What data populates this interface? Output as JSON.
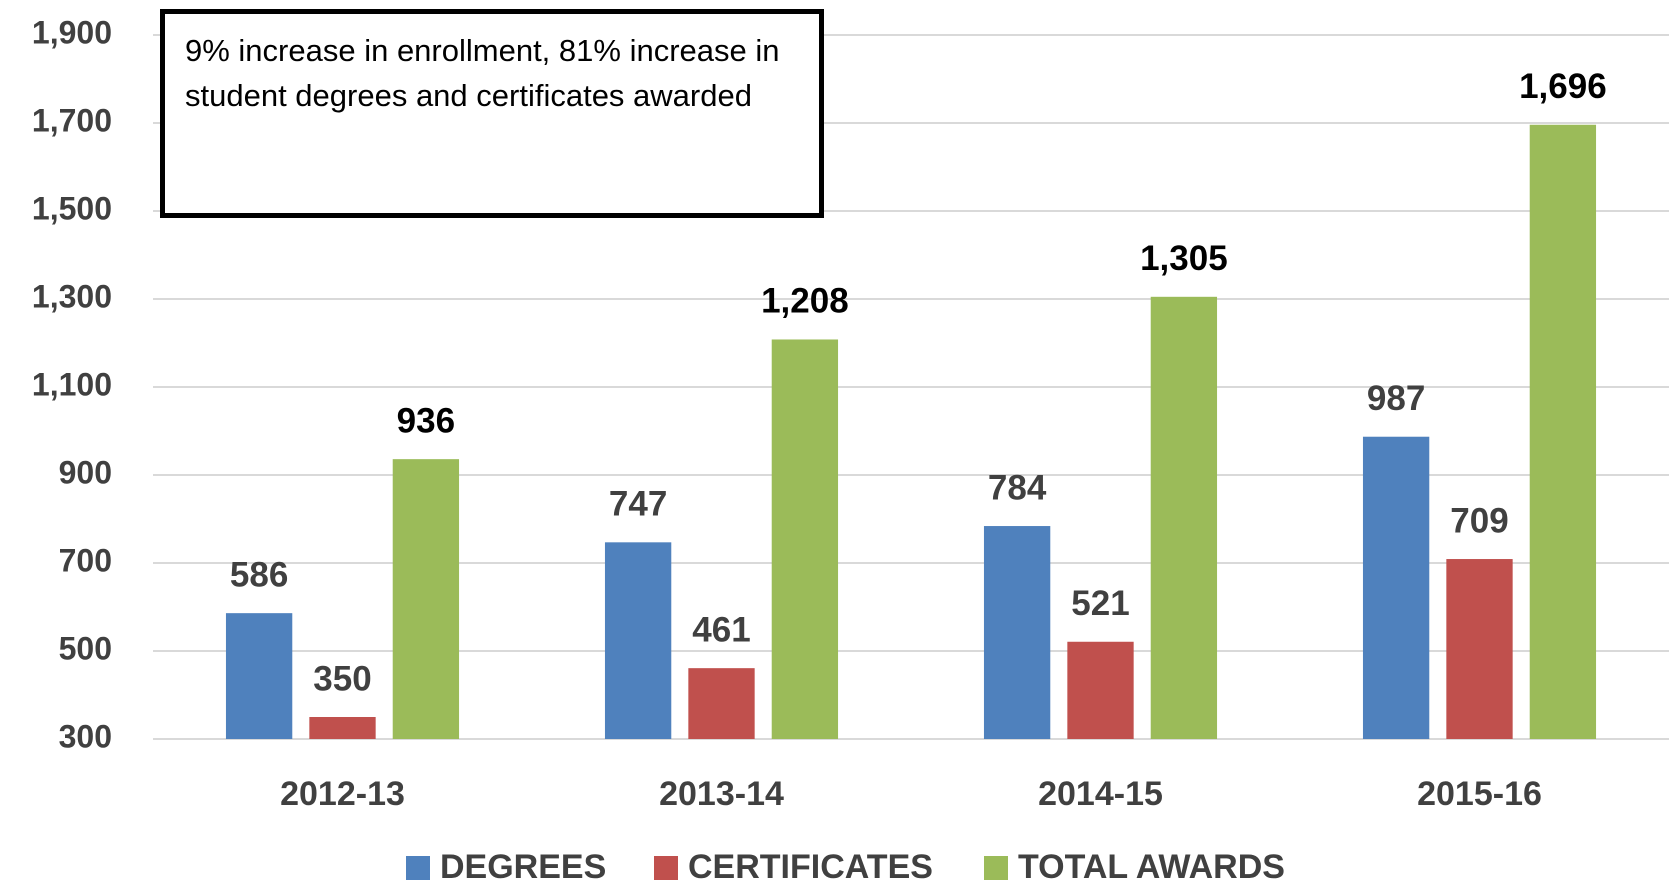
{
  "chart_data": {
    "type": "bar",
    "annotation": "9% increase in enrollment, 81% increase in student degrees and certificates awarded",
    "categories": [
      "2012-13",
      "2013-14",
      "2014-15",
      "2015-16"
    ],
    "series": [
      {
        "name": "DEGREES",
        "color": "#4f81bd",
        "values": [
          586,
          747,
          784,
          987
        ]
      },
      {
        "name": "CERTIFICATES",
        "color": "#c0504d",
        "values": [
          350,
          461,
          521,
          709
        ]
      },
      {
        "name": "TOTAL AWARDS",
        "color": "#9bbb59",
        "values": [
          936,
          1208,
          1305,
          1696
        ],
        "value_labels": [
          "936",
          "1,208",
          "1,305",
          "1,696"
        ]
      }
    ],
    "ylim": [
      300,
      1900
    ],
    "yticks": [
      300,
      500,
      700,
      900,
      {
        "value": 1100,
        "label": "1,100"
      },
      {
        "value": 1300,
        "label": "1,300"
      },
      {
        "value": 1500,
        "label": "1,500"
      },
      {
        "value": 1700,
        "label": "1,700"
      },
      {
        "value": 1900,
        "label": "1,900"
      }
    ],
    "grid": true,
    "legend": "bottom"
  }
}
